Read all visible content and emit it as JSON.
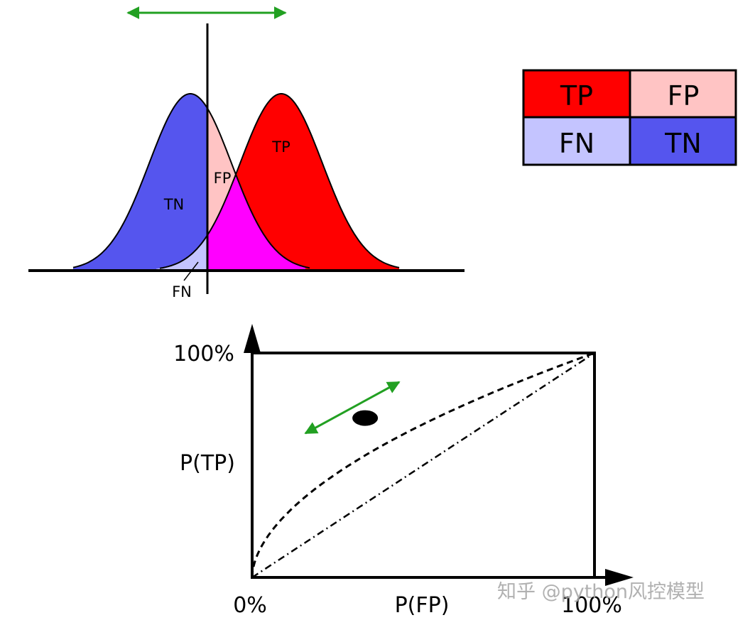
{
  "distribution": {
    "labels": {
      "tn": "TN",
      "fp": "FP",
      "tp": "TP",
      "fn": "FN"
    }
  },
  "matrix": {
    "cells": [
      {
        "label": "TP",
        "color": "#ff0000"
      },
      {
        "label": "FP",
        "color": "#ffc4c4"
      },
      {
        "label": "FN",
        "color": "#c4c4ff"
      },
      {
        "label": "TN",
        "color": "#5555ee"
      }
    ]
  },
  "roc": {
    "y_top_label": "100%",
    "y_axis_label": "P(TP)",
    "x_origin_label": "0%",
    "x_axis_label": "P(FP)",
    "x_end_label": "100%",
    "operating_point": {
      "fp": 0.33,
      "tp": 0.71
    }
  },
  "colors": {
    "negative": "#5555ee",
    "positive": "#ff0000",
    "false_positive": "#ffc4c4",
    "false_negative": "#c4c4ff",
    "overlap": "#ff00ff",
    "arrow": "#22a022"
  },
  "watermark": "知乎 @python风控模型"
}
